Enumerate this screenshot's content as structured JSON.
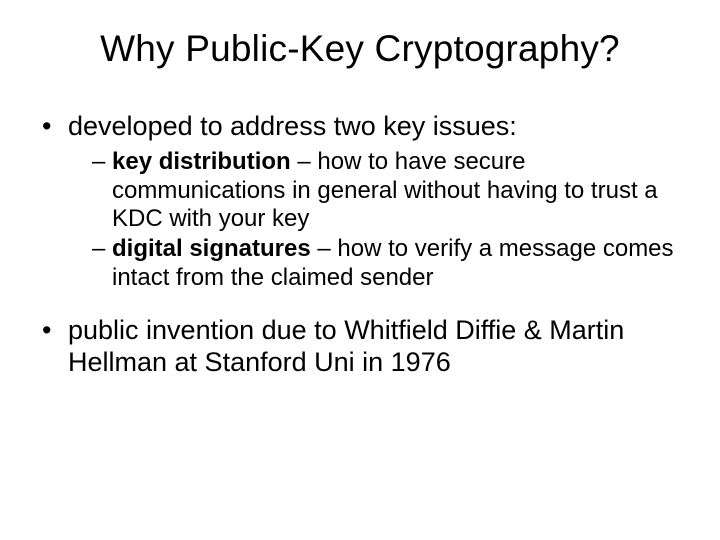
{
  "slide": {
    "title": "Why Public-Key Cryptography?",
    "background_color": "#ffffff",
    "text_color": "#000000",
    "font_family": "Arial",
    "title_fontsize": 37,
    "body_fontsize": 27,
    "sub_fontsize": 24,
    "bullets": [
      {
        "text": "developed to address two key issues:",
        "sub": [
          {
            "bold": "key distribution",
            "rest": " – how to have secure communications in general without having to trust a KDC with your key"
          },
          {
            "bold": "digital signatures",
            "rest": " – how to verify a message comes intact from the claimed sender"
          }
        ]
      },
      {
        "text": "public invention due to Whitfield Diffie & Martin Hellman at Stanford Uni in 1976",
        "sub": []
      }
    ]
  }
}
